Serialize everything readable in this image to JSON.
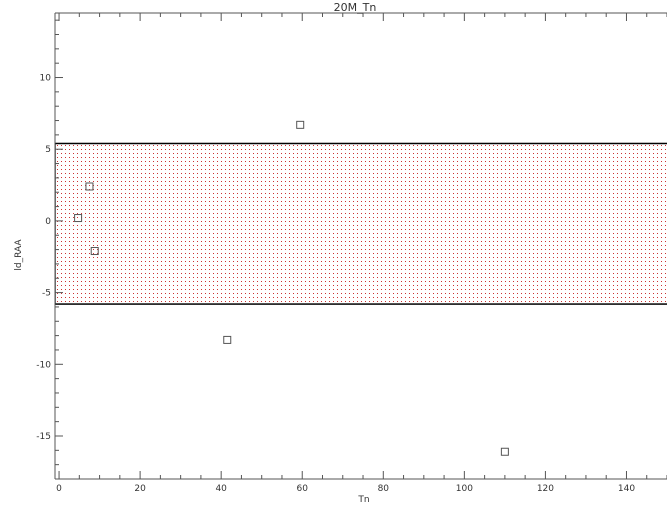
{
  "chart_data": {
    "type": "scatter",
    "title": "20M_Tn",
    "xlabel": "Tn",
    "ylabel": "ld_RAA",
    "xlim": [
      -1,
      150
    ],
    "ylim": [
      -18,
      14.5
    ],
    "x_ticks": [
      0,
      20,
      40,
      60,
      80,
      100,
      120,
      140
    ],
    "x_tick_labels": [
      "0",
      "20",
      "40",
      "60",
      "80",
      "100",
      "120",
      "140"
    ],
    "y_ticks": [
      -15,
      -10,
      -5,
      0,
      5,
      10
    ],
    "y_tick_labels": [
      "-15",
      "-10",
      "-5",
      "0",
      "5",
      "10"
    ],
    "grid": false,
    "marker": "open-square",
    "series": [
      {
        "points": [
          {
            "x": 4.7,
            "y": 0.2
          },
          {
            "x": 7.5,
            "y": 2.4
          },
          {
            "x": 8.8,
            "y": -2.1
          },
          {
            "x": 41.5,
            "y": -8.3
          },
          {
            "x": 59.5,
            "y": 6.7
          },
          {
            "x": 110.0,
            "y": -16.1
          }
        ]
      }
    ],
    "band": {
      "y_min": -5.8,
      "y_max": 5.4,
      "fill": "red-dotted",
      "outline": "#000000"
    },
    "colors": {
      "axis": "#555555",
      "marker": "#555555",
      "band_dot": "#cc3333",
      "band_border": "#000000"
    }
  }
}
